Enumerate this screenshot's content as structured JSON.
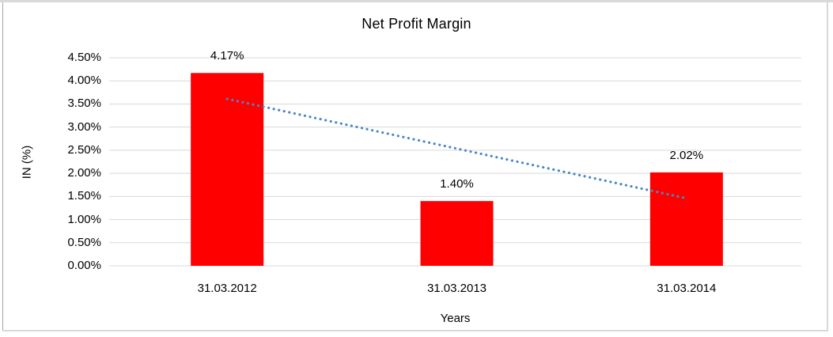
{
  "chart_data": {
    "type": "bar",
    "title": "Net Profit Margin",
    "xlabel": "Years",
    "ylabel": "IN (%)",
    "categories": [
      "31.03.2012",
      "31.03.2013",
      "31.03.2014"
    ],
    "values": [
      4.17,
      1.4,
      2.02
    ],
    "value_labels": [
      "4.17%",
      "1.40%",
      "2.02%"
    ],
    "ylim": [
      0,
      4.5
    ],
    "ytick_step": 0.5,
    "ytick_labels": [
      "0.00%",
      "0.50%",
      "1.00%",
      "1.50%",
      "2.00%",
      "2.50%",
      "3.00%",
      "3.50%",
      "4.00%",
      "4.50%"
    ],
    "grid": true,
    "legend": "none",
    "bar_color": "#ff0000",
    "gridline_color": "#d9d9d9",
    "text_color": "#000000",
    "trendline": {
      "type": "linear",
      "style": "dotted",
      "color": "#4a86c8",
      "start_value": 3.61,
      "end_value": 1.46
    }
  }
}
